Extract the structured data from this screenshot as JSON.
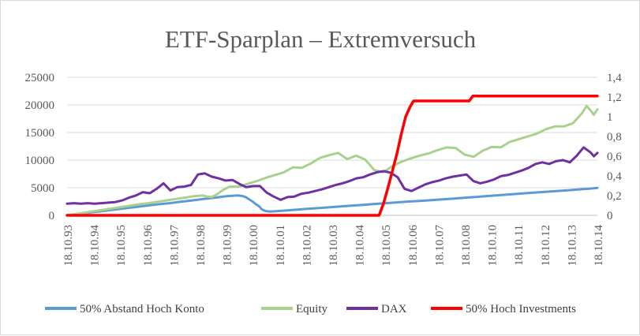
{
  "chart_data": {
    "type": "line",
    "title": "ETF-Sparplan – Extremversuch",
    "xlabel": "",
    "ylabel": "",
    "x_ticks": [
      "18.10.93",
      "18.10.94",
      "18.10.95",
      "18.10.96",
      "18.10.97",
      "18.10.98",
      "18.10.99",
      "18.10.00",
      "18.10.01",
      "18.10.02",
      "18.10.03",
      "18.10.04",
      "18.10.05",
      "18.10.06",
      "18.10.07",
      "18.10.08",
      "18.10.10",
      "18.10.11",
      "18.10.12",
      "18.10.13",
      "18.10.14"
    ],
    "y_left": {
      "ylim": [
        0,
        25000
      ],
      "ticks": [
        "0",
        "5000",
        "10000",
        "15000",
        "20000",
        "25000"
      ]
    },
    "y_right": {
      "ylim": [
        0,
        1.4
      ],
      "ticks": [
        "0",
        "0,2",
        "0,4",
        "0,6",
        "0,8",
        "1",
        "1,2",
        "1,4"
      ]
    },
    "grid": true,
    "legend_position": "bottom",
    "series": [
      {
        "name": "50% Abstand Hoch Konto",
        "axis": "left",
        "color": "#5b9bd5",
        "points": [
          [
            0,
            0
          ],
          [
            1,
            250
          ],
          [
            2,
            500
          ],
          [
            3,
            750
          ],
          [
            4,
            1000
          ],
          [
            5,
            1250
          ],
          [
            6,
            1500
          ],
          [
            7,
            1750
          ],
          [
            8,
            2000
          ],
          [
            9,
            2200
          ],
          [
            10,
            2450
          ],
          [
            11,
            2700
          ],
          [
            12,
            2950
          ],
          [
            13,
            3200
          ],
          [
            14,
            3450
          ],
          [
            15,
            3600
          ],
          [
            15.4,
            3500
          ],
          [
            15.7,
            3300
          ],
          [
            16,
            2900
          ],
          [
            16.3,
            2500
          ],
          [
            16.6,
            2000
          ],
          [
            16.9,
            1600
          ],
          [
            17.1,
            1100
          ],
          [
            17.4,
            800
          ],
          [
            17.7,
            700
          ],
          [
            18,
            700
          ],
          [
            19,
            850
          ],
          [
            20,
            1000
          ],
          [
            21,
            1150
          ],
          [
            22,
            1300
          ],
          [
            23,
            1450
          ],
          [
            24,
            1600
          ],
          [
            25,
            1750
          ],
          [
            26,
            1900
          ],
          [
            27,
            2050
          ],
          [
            28,
            2200
          ],
          [
            29,
            2350
          ],
          [
            30,
            2500
          ],
          [
            31,
            2600
          ],
          [
            32,
            2750
          ],
          [
            33,
            2900
          ],
          [
            34,
            3050
          ],
          [
            35,
            3200
          ],
          [
            36,
            3350
          ],
          [
            37,
            3500
          ],
          [
            38,
            3650
          ],
          [
            39,
            3800
          ],
          [
            40,
            3950
          ],
          [
            41,
            4100
          ],
          [
            42,
            4250
          ],
          [
            43,
            4400
          ],
          [
            44,
            4550
          ],
          [
            45,
            4700
          ],
          [
            46,
            4850
          ],
          [
            46.6,
            4950
          ]
        ]
      },
      {
        "name": "Equity",
        "axis": "left",
        "color": "#a9d18e",
        "points": [
          [
            0,
            0
          ],
          [
            1,
            250
          ],
          [
            2,
            500
          ],
          [
            3,
            750
          ],
          [
            4,
            1000
          ],
          [
            5,
            1250
          ],
          [
            6,
            1500
          ],
          [
            7,
            1750
          ],
          [
            8,
            2000
          ],
          [
            9,
            2200
          ],
          [
            10,
            2450
          ],
          [
            11,
            2700
          ],
          [
            12,
            2950
          ],
          [
            13,
            3200
          ],
          [
            14,
            3450
          ],
          [
            15,
            3600
          ],
          [
            15.5,
            3400
          ],
          [
            16,
            3300
          ],
          [
            16.5,
            3700
          ],
          [
            17,
            4300
          ],
          [
            17.5,
            4800
          ],
          [
            18,
            5200
          ],
          [
            19,
            5200
          ],
          [
            20,
            5700
          ],
          [
            21,
            6200
          ],
          [
            22,
            6800
          ],
          [
            23,
            7300
          ],
          [
            24,
            7800
          ],
          [
            25,
            8700
          ],
          [
            26,
            8600
          ],
          [
            27,
            9400
          ],
          [
            28,
            10400
          ],
          [
            29,
            10900
          ],
          [
            30,
            11300
          ],
          [
            31,
            10200
          ],
          [
            32,
            10800
          ],
          [
            33,
            10100
          ],
          [
            34,
            8200
          ],
          [
            35,
            7800
          ],
          [
            36,
            8900
          ],
          [
            37,
            9700
          ],
          [
            38,
            10300
          ],
          [
            39,
            10800
          ],
          [
            40,
            11200
          ],
          [
            41,
            11800
          ],
          [
            42,
            12300
          ],
          [
            43,
            12200
          ],
          [
            44,
            11000
          ],
          [
            45,
            10600
          ],
          [
            46,
            11700
          ],
          [
            47,
            12400
          ],
          [
            48,
            12300
          ],
          [
            49,
            13300
          ],
          [
            50,
            13800
          ],
          [
            51,
            14300
          ],
          [
            52,
            14800
          ],
          [
            53,
            15600
          ],
          [
            54,
            16100
          ],
          [
            55,
            16100
          ],
          [
            56,
            16700
          ],
          [
            57,
            18500
          ],
          [
            57.5,
            19800
          ],
          [
            58,
            18900
          ],
          [
            58.3,
            18200
          ],
          [
            58.7,
            19200
          ]
        ]
      },
      {
        "name": "DAX",
        "axis": "left",
        "color": "#7030a0",
        "points": [
          [
            0,
            2100
          ],
          [
            1,
            2200
          ],
          [
            2,
            2100
          ],
          [
            3,
            2200
          ],
          [
            4,
            2100
          ],
          [
            5,
            2200
          ],
          [
            6,
            2300
          ],
          [
            7,
            2400
          ],
          [
            8,
            2700
          ],
          [
            9,
            3200
          ],
          [
            10,
            3600
          ],
          [
            11,
            4200
          ],
          [
            12,
            4000
          ],
          [
            13,
            4800
          ],
          [
            14,
            5800
          ],
          [
            15,
            4500
          ],
          [
            16,
            5100
          ],
          [
            17,
            5200
          ],
          [
            18,
            5500
          ],
          [
            19,
            7400
          ],
          [
            20,
            7600
          ],
          [
            21,
            7000
          ],
          [
            22,
            6700
          ],
          [
            23,
            6300
          ],
          [
            24,
            6400
          ],
          [
            25,
            5700
          ],
          [
            26,
            5100
          ],
          [
            27,
            5300
          ],
          [
            28,
            5300
          ],
          [
            29,
            4100
          ],
          [
            30,
            3400
          ],
          [
            31,
            2800
          ],
          [
            32,
            3300
          ],
          [
            33,
            3400
          ],
          [
            34,
            3900
          ],
          [
            35,
            4100
          ],
          [
            36,
            4400
          ],
          [
            37,
            4700
          ],
          [
            38,
            5100
          ],
          [
            39,
            5500
          ],
          [
            40,
            5800
          ],
          [
            41,
            6200
          ],
          [
            42,
            6700
          ],
          [
            43,
            6900
          ],
          [
            44,
            7400
          ],
          [
            45,
            7800
          ],
          [
            46,
            8000
          ],
          [
            47,
            7700
          ],
          [
            48,
            6900
          ],
          [
            49,
            4800
          ],
          [
            50,
            4400
          ],
          [
            51,
            5000
          ],
          [
            52,
            5600
          ],
          [
            53,
            6000
          ],
          [
            54,
            6300
          ],
          [
            55,
            6700
          ],
          [
            56,
            7000
          ],
          [
            57,
            7200
          ],
          [
            58,
            7400
          ],
          [
            59,
            6200
          ],
          [
            60,
            5800
          ],
          [
            61,
            6100
          ],
          [
            62,
            6500
          ],
          [
            63,
            7100
          ],
          [
            64,
            7300
          ],
          [
            65,
            7700
          ],
          [
            66,
            8100
          ],
          [
            67,
            8600
          ],
          [
            68,
            9300
          ],
          [
            69,
            9600
          ],
          [
            70,
            9300
          ],
          [
            71,
            9800
          ],
          [
            72,
            10000
          ],
          [
            73,
            9600
          ],
          [
            74,
            10800
          ],
          [
            75,
            12300
          ],
          [
            76,
            11400
          ],
          [
            76.5,
            10700
          ],
          [
            77,
            11300
          ]
        ]
      },
      {
        "name": "50% Hoch Investments",
        "axis": "right",
        "color": "#ff0000",
        "points": [
          [
            0,
            0
          ],
          [
            35.3,
            0
          ],
          [
            35.8,
            0.12
          ],
          [
            36.3,
            0.28
          ],
          [
            36.8,
            0.45
          ],
          [
            37.3,
            0.62
          ],
          [
            37.8,
            0.82
          ],
          [
            38.3,
            1.0
          ],
          [
            38.8,
            1.1
          ],
          [
            39.2,
            1.16
          ],
          [
            45.5,
            1.16
          ],
          [
            45.9,
            1.21
          ],
          [
            60,
            1.21
          ]
        ]
      }
    ]
  }
}
